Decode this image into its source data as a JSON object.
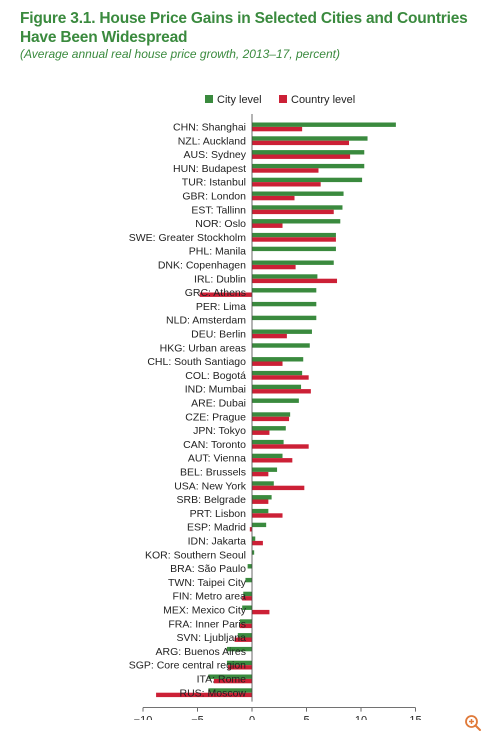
{
  "title": "Figure 3.1. House Price Gains in Selected Cities and Countries Have Been Widespread",
  "subtitle": "(Average annual real house price growth, 2013–17, percent)",
  "zoom_icon": "zoom-in-icon",
  "chart_data": {
    "type": "bar",
    "orientation": "horizontal",
    "categories": [
      "CHN: Shanghai",
      "NZL: Auckland",
      "AUS: Sydney",
      "HUN: Budapest",
      "TUR: Istanbul",
      "GBR: London",
      "EST: Tallinn",
      "NOR: Oslo",
      "SWE: Greater Stockholm",
      "PHL: Manila",
      "DNK: Copenhagen",
      "IRL: Dublin",
      "GRC: Athens",
      "PER: Lima",
      "NLD: Amsterdam",
      "DEU: Berlin",
      "HKG: Urban areas",
      "CHL: South Santiago",
      "COL: Bogotá",
      "IND: Mumbai",
      "ARE: Dubai",
      "CZE: Prague",
      "JPN: Tokyo",
      "CAN: Toronto",
      "AUT: Vienna",
      "BEL: Brussels",
      "USA: New York",
      "SRB: Belgrade",
      "PRT: Lisbon",
      "ESP: Madrid",
      "IDN: Jakarta",
      "KOR: Southern Seoul",
      "BRA: São Paulo",
      "TWN: Taipei City",
      "FIN: Metro area",
      "MEX: Mexico City",
      "FRA: Inner Paris",
      "SVN: Ljubljana",
      "ARG: Buenos Aires",
      "SGP: Core central region",
      "ITA: Rome",
      "RUS: Moscow"
    ],
    "series": [
      {
        "name": "City level",
        "color": "#3a8a3e",
        "values": [
          13.2,
          10.6,
          10.3,
          10.3,
          10.1,
          8.4,
          8.3,
          8.1,
          7.7,
          7.7,
          7.5,
          6.0,
          5.9,
          5.9,
          5.9,
          5.5,
          5.3,
          4.7,
          4.6,
          4.5,
          4.3,
          3.5,
          3.1,
          2.9,
          2.8,
          2.3,
          2.0,
          1.8,
          1.5,
          1.3,
          0.3,
          0.2,
          -0.4,
          -0.6,
          -0.8,
          -0.9,
          -1.1,
          -1.3,
          -2.3,
          -2.3,
          -4.0,
          -4.0
        ]
      },
      {
        "name": "Country level",
        "color": "#cc2036",
        "values": [
          4.6,
          8.9,
          9.0,
          6.1,
          6.3,
          3.9,
          7.5,
          2.8,
          7.7,
          0,
          4.0,
          7.8,
          -4.8,
          0,
          0,
          3.2,
          0,
          2.8,
          5.2,
          5.4,
          0,
          3.4,
          1.6,
          5.2,
          3.7,
          1.5,
          4.8,
          1.5,
          2.8,
          -0.2,
          1.0,
          0,
          0,
          0,
          -0.9,
          1.6,
          -1.1,
          -1.6,
          0,
          -2.2,
          -3.5,
          -8.8
        ]
      }
    ],
    "xlim": [
      -10,
      15
    ],
    "xticks": [
      -10,
      -5,
      0,
      5,
      10,
      15
    ],
    "xtick_labels": [
      "−10",
      "−5",
      "0",
      "5",
      "10",
      "15"
    ],
    "legend_position": "top-center",
    "grid": false
  }
}
